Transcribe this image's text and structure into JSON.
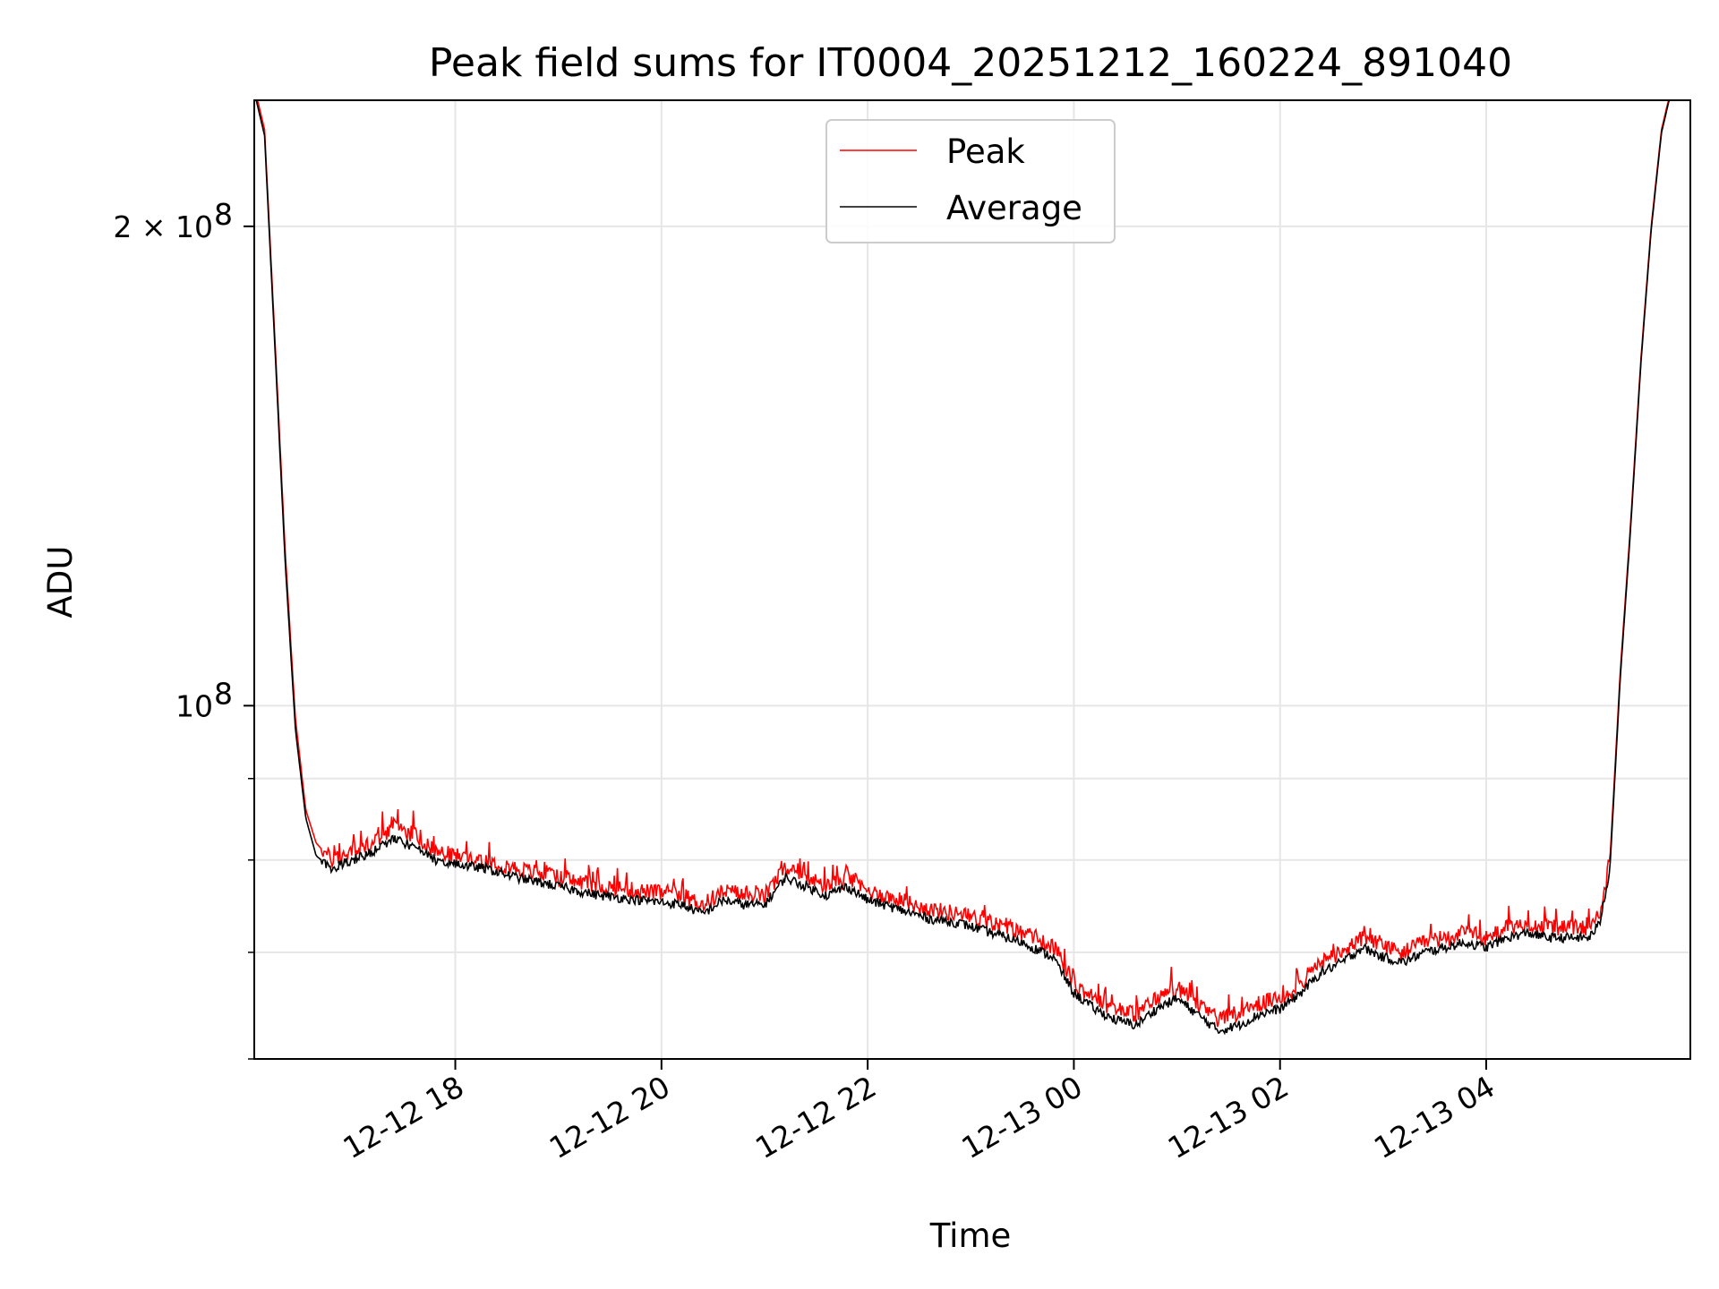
{
  "chart_data": {
    "type": "line",
    "title": "Peak field sums for IT0004_20251212_160224_891040",
    "xlabel": "Time",
    "ylabel": "ADU",
    "yscale": "log",
    "ylim": [
      60000000,
      240000000
    ],
    "xlim_hours": [
      16.05,
      5.98
    ],
    "grid": true,
    "legend_position": "upper center",
    "x_ticks": [
      {
        "hour": 18,
        "label": "12-12 18"
      },
      {
        "hour": 20,
        "label": "12-12 20"
      },
      {
        "hour": 22,
        "label": "12-12 22"
      },
      {
        "hour": 24,
        "label": "12-13 00"
      },
      {
        "hour": 26,
        "label": "12-13 02"
      },
      {
        "hour": 28,
        "label": "12-13 04"
      }
    ],
    "y_ticks_major": [
      {
        "value": 100000000,
        "label_base": "10",
        "label_exp": "8"
      },
      {
        "value": 200000000,
        "label_base": "2 × 10",
        "label_exp": "8"
      }
    ],
    "y_ticks_minor": [
      60000000,
      70000000,
      80000000,
      90000000
    ],
    "series": [
      {
        "name": "Peak",
        "color": "#ff0000",
        "x_hours": [
          16.05,
          16.15,
          16.25,
          16.35,
          16.45,
          16.55,
          16.65,
          16.8,
          17.0,
          17.2,
          17.4,
          17.6,
          17.8,
          18.0,
          18.3,
          18.6,
          19.0,
          19.4,
          19.8,
          20.2,
          20.4,
          20.6,
          20.8,
          21.0,
          21.2,
          21.4,
          21.6,
          21.8,
          22.0,
          22.3,
          22.6,
          22.9,
          23.2,
          23.5,
          23.8,
          24.0,
          24.2,
          24.4,
          24.6,
          24.8,
          25.0,
          25.2,
          25.4,
          25.6,
          25.8,
          26.0,
          26.2,
          26.4,
          26.6,
          26.8,
          27.0,
          27.2,
          27.4,
          27.6,
          27.8,
          28.0,
          28.2,
          28.4,
          28.6,
          28.8,
          29.0,
          29.1,
          29.2,
          29.3,
          29.4,
          29.5,
          29.6,
          29.7,
          29.8,
          29.9,
          29.98
        ],
        "values": [
          245000000,
          230000000,
          170000000,
          125000000,
          98000000,
          86000000,
          82000000,
          80000000,
          81000000,
          82000000,
          84000000,
          83000000,
          81000000,
          80500000,
          80000000,
          79000000,
          78000000,
          77000000,
          76500000,
          76000000,
          75000000,
          76500000,
          76000000,
          76000000,
          79000000,
          78000000,
          77000000,
          78000000,
          76500000,
          75500000,
          74500000,
          74000000,
          73000000,
          72000000,
          70500000,
          67000000,
          65500000,
          64500000,
          64000000,
          65500000,
          66500000,
          65000000,
          63500000,
          64000000,
          65000000,
          65500000,
          67000000,
          69000000,
          70000000,
          71500000,
          70500000,
          70000000,
          71000000,
          71500000,
          72000000,
          71500000,
          72500000,
          73000000,
          72500000,
          72500000,
          72500000,
          74000000,
          80000000,
          105000000,
          130000000,
          165000000,
          200000000,
          230000000,
          245000000,
          250000000,
          250000000
        ]
      },
      {
        "name": "Average",
        "color": "#000000",
        "x_hours": [
          16.05,
          16.15,
          16.25,
          16.35,
          16.45,
          16.55,
          16.65,
          16.8,
          17.0,
          17.2,
          17.4,
          17.6,
          17.8,
          18.0,
          18.3,
          18.6,
          19.0,
          19.4,
          19.8,
          20.2,
          20.4,
          20.6,
          20.8,
          21.0,
          21.2,
          21.4,
          21.6,
          21.8,
          22.0,
          22.3,
          22.6,
          22.9,
          23.2,
          23.5,
          23.8,
          24.0,
          24.2,
          24.4,
          24.6,
          24.8,
          25.0,
          25.2,
          25.4,
          25.6,
          25.8,
          26.0,
          26.2,
          26.4,
          26.6,
          26.8,
          27.0,
          27.2,
          27.4,
          27.6,
          27.8,
          28.0,
          28.2,
          28.4,
          28.6,
          28.8,
          29.0,
          29.1,
          29.2,
          29.3,
          29.4,
          29.5,
          29.6,
          29.7,
          29.8,
          29.9,
          29.98
        ],
        "values": [
          243000000,
          228000000,
          168000000,
          123000000,
          96500000,
          85000000,
          80500000,
          79000000,
          80000000,
          81000000,
          82500000,
          81500000,
          80000000,
          79500000,
          79000000,
          78000000,
          77000000,
          76000000,
          75500000,
          75000000,
          74000000,
          75500000,
          75000000,
          75000000,
          78000000,
          77000000,
          76000000,
          77000000,
          75500000,
          74500000,
          73500000,
          73000000,
          72000000,
          71000000,
          69500000,
          66000000,
          64500000,
          63500000,
          63000000,
          64500000,
          65500000,
          64000000,
          62500000,
          63000000,
          64000000,
          64500000,
          66000000,
          68000000,
          69000000,
          70500000,
          69500000,
          69000000,
          70000000,
          70500000,
          71000000,
          70500000,
          71500000,
          72000000,
          71500000,
          71500000,
          71500000,
          73000000,
          79000000,
          104000000,
          129000000,
          164000000,
          199000000,
          229000000,
          244000000,
          249000000,
          249000000
        ]
      }
    ]
  }
}
